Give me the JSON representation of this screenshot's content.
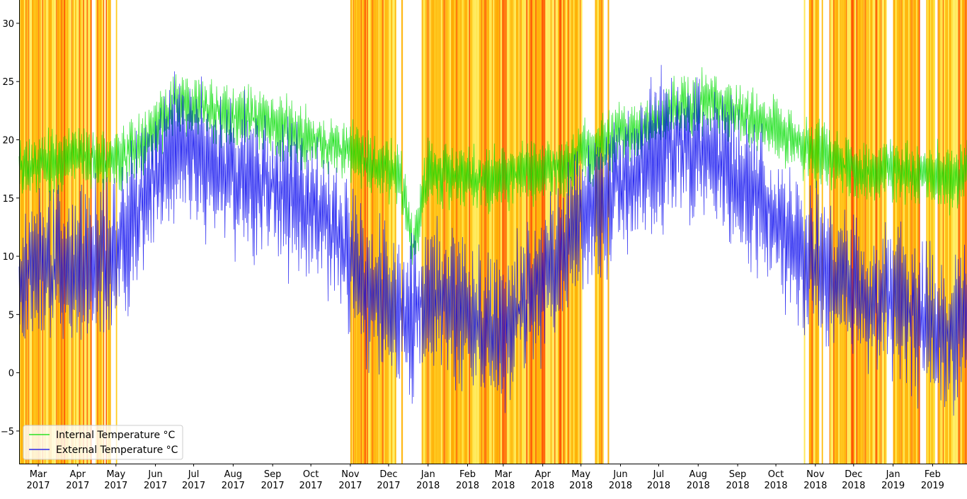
{
  "chart_data": {
    "type": "line",
    "title": "",
    "xlabel": "",
    "ylabel": "",
    "xlim": [
      "2017-02-14",
      "2019-02-28"
    ],
    "ylim": [
      -7.8,
      32
    ],
    "yticks": [
      -5,
      0,
      5,
      10,
      15,
      20,
      25,
      30
    ],
    "ytick_labels": [
      "−5",
      "0",
      "5",
      "10",
      "15",
      "20",
      "25",
      "30"
    ],
    "xticks": [
      {
        "date": "2017-03-01",
        "month": "Mar",
        "year": "2017"
      },
      {
        "date": "2017-04-01",
        "month": "Apr",
        "year": "2017"
      },
      {
        "date": "2017-05-01",
        "month": "May",
        "year": "2017"
      },
      {
        "date": "2017-06-01",
        "month": "Jun",
        "year": "2017"
      },
      {
        "date": "2017-07-01",
        "month": "Jul",
        "year": "2017"
      },
      {
        "date": "2017-08-01",
        "month": "Aug",
        "year": "2017"
      },
      {
        "date": "2017-09-01",
        "month": "Sep",
        "year": "2017"
      },
      {
        "date": "2017-10-01",
        "month": "Oct",
        "year": "2017"
      },
      {
        "date": "2017-11-01",
        "month": "Nov",
        "year": "2017"
      },
      {
        "date": "2017-12-01",
        "month": "Dec",
        "year": "2017"
      },
      {
        "date": "2018-01-01",
        "month": "Jan",
        "year": "2018"
      },
      {
        "date": "2018-02-01",
        "month": "Feb",
        "year": "2018"
      },
      {
        "date": "2018-03-01",
        "month": "Mar",
        "year": "2018"
      },
      {
        "date": "2018-04-01",
        "month": "Apr",
        "year": "2018"
      },
      {
        "date": "2018-05-01",
        "month": "May",
        "year": "2018"
      },
      {
        "date": "2018-06-01",
        "month": "Jun",
        "year": "2018"
      },
      {
        "date": "2018-07-01",
        "month": "Jul",
        "year": "2018"
      },
      {
        "date": "2018-08-01",
        "month": "Aug",
        "year": "2018"
      },
      {
        "date": "2018-09-01",
        "month": "Sep",
        "year": "2018"
      },
      {
        "date": "2018-10-01",
        "month": "Oct",
        "year": "2018"
      },
      {
        "date": "2018-11-01",
        "month": "Nov",
        "year": "2018"
      },
      {
        "date": "2018-12-01",
        "month": "Dec",
        "year": "2018"
      },
      {
        "date": "2019-01-01",
        "month": "Jan",
        "year": "2019"
      },
      {
        "date": "2019-02-01",
        "month": "Feb",
        "year": "2019"
      }
    ],
    "legend_position": "lower-left",
    "grid": false,
    "series": [
      {
        "name": "Internal Temperature °C",
        "color": "#00dd00",
        "dates": [
          "2017-02-14",
          "2017-03-01",
          "2017-03-15",
          "2017-04-01",
          "2017-04-15",
          "2017-05-01",
          "2017-05-15",
          "2017-06-01",
          "2017-06-15",
          "2017-07-01",
          "2017-07-15",
          "2017-08-01",
          "2017-08-15",
          "2017-09-01",
          "2017-09-15",
          "2017-10-01",
          "2017-10-15",
          "2017-11-01",
          "2017-11-15",
          "2017-12-01",
          "2017-12-10",
          "2017-12-20",
          "2018-01-01",
          "2018-01-15",
          "2018-02-01",
          "2018-02-15",
          "2018-03-01",
          "2018-03-15",
          "2018-04-01",
          "2018-04-15",
          "2018-05-01",
          "2018-05-15",
          "2018-06-01",
          "2018-06-15",
          "2018-07-01",
          "2018-07-15",
          "2018-08-01",
          "2018-08-15",
          "2018-09-01",
          "2018-09-15",
          "2018-10-01",
          "2018-10-15",
          "2018-11-01",
          "2018-11-15",
          "2018-12-01",
          "2018-12-15",
          "2019-01-01",
          "2019-01-15",
          "2019-02-01",
          "2019-02-15",
          "2019-02-28"
        ],
        "values": [
          17.5,
          18,
          18,
          18.5,
          18.5,
          18,
          19,
          21,
          23,
          23,
          22.5,
          22,
          22,
          21.5,
          21,
          20,
          19.5,
          19,
          18,
          17.5,
          16.5,
          11,
          17,
          17,
          17,
          16.5,
          17,
          17,
          17.5,
          17.5,
          19,
          19,
          20.5,
          21,
          22,
          23,
          23,
          23.5,
          22.5,
          21.5,
          21,
          20,
          19,
          18.5,
          17.5,
          17,
          17.5,
          17,
          17,
          16.5,
          17.5
        ],
        "amplitude": 2.5
      },
      {
        "name": "External Temperature °C",
        "color": "#0000ee",
        "dates": [
          "2017-02-14",
          "2017-03-01",
          "2017-03-15",
          "2017-04-01",
          "2017-04-15",
          "2017-05-01",
          "2017-05-15",
          "2017-06-01",
          "2017-06-15",
          "2017-07-01",
          "2017-07-15",
          "2017-08-01",
          "2017-08-15",
          "2017-09-01",
          "2017-09-15",
          "2017-10-01",
          "2017-10-15",
          "2017-11-01",
          "2017-11-15",
          "2017-12-01",
          "2017-12-15",
          "2018-01-01",
          "2018-01-15",
          "2018-02-01",
          "2018-02-15",
          "2018-03-01",
          "2018-03-15",
          "2018-04-01",
          "2018-04-15",
          "2018-05-01",
          "2018-05-15",
          "2018-06-01",
          "2018-06-15",
          "2018-07-01",
          "2018-07-15",
          "2018-08-01",
          "2018-08-15",
          "2018-09-01",
          "2018-09-15",
          "2018-10-01",
          "2018-10-15",
          "2018-11-01",
          "2018-11-15",
          "2018-12-01",
          "2018-12-15",
          "2019-01-01",
          "2019-01-15",
          "2019-02-01",
          "2019-02-15",
          "2019-02-28"
        ],
        "values": [
          8,
          9,
          9,
          9,
          10,
          10,
          13,
          17,
          18.5,
          19,
          18,
          17,
          16.5,
          16,
          15,
          14,
          13,
          10,
          7,
          6,
          4,
          6,
          7,
          5,
          4,
          3,
          6,
          8,
          11,
          13,
          14,
          16,
          17,
          19,
          20,
          19,
          18,
          16,
          15,
          13,
          11,
          10,
          8,
          7,
          6,
          6,
          5,
          4,
          3,
          5
        ],
        "amplitude": 6
      }
    ],
    "heating_intervals": [
      [
        "2017-02-14",
        "2017-04-12"
      ],
      [
        "2017-04-15",
        "2017-04-22"
      ],
      [
        "2017-04-23",
        "2017-04-27"
      ],
      [
        "2017-05-01",
        "2017-05-02"
      ],
      [
        "2017-11-01",
        "2017-12-07"
      ],
      [
        "2017-12-11",
        "2017-12-12"
      ],
      [
        "2017-12-27",
        "2018-05-02"
      ],
      [
        "2018-05-12",
        "2018-05-19"
      ],
      [
        "2018-05-22",
        "2018-05-23"
      ],
      [
        "2018-10-23",
        "2018-10-24"
      ],
      [
        "2018-10-27",
        "2018-11-04"
      ],
      [
        "2018-11-06",
        "2018-11-07"
      ],
      [
        "2018-11-12",
        "2018-12-27"
      ],
      [
        "2019-01-01",
        "2019-01-22"
      ],
      [
        "2019-01-27",
        "2019-02-03"
      ],
      [
        "2019-02-05",
        "2019-02-28"
      ]
    ],
    "band_colors": [
      "#ffd700",
      "#ffa500",
      "#ff4400",
      "#fff176"
    ]
  }
}
